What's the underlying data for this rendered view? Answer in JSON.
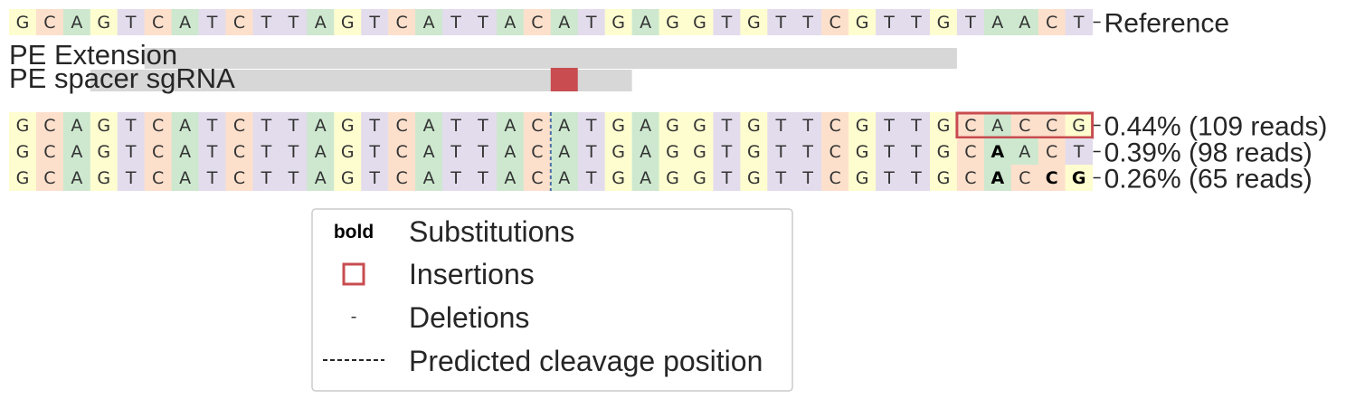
{
  "colors": {
    "A": "#cde8cf",
    "C": "#fde0cc",
    "G": "#fefdd0",
    "T": "#e3dcec",
    "track": "#d7d7d7",
    "insertion": "#c84c50",
    "cleavage": "#4a6fa8",
    "text": "#262626"
  },
  "reference": {
    "sequence": "GCAGTCATCTTAGTCATTACATGAGGTGTTCGTTGTAACT",
    "label": "Reference"
  },
  "tracks": [
    {
      "label": "PE Extension"
    },
    {
      "label": "PE spacer sgRNA"
    }
  ],
  "cleavage_after_index": 19,
  "reads": [
    {
      "sequence": "GCAGTCATCTTAGTCATTACATGAGGTGTTCGTTGCACCG",
      "bold": [],
      "insertion": [
        35,
        40
      ],
      "label": "0.44% (109 reads)"
    },
    {
      "sequence": "GCAGTCATCTTAGTCATTACATGAGGTGTTCGTTGCAACT",
      "bold": [
        36
      ],
      "insertion": null,
      "label": "0.39% (98 reads)"
    },
    {
      "sequence": "GCAGTCATCTTAGTCATTACATGAGGTGTTCGTTGCACCG",
      "bold": [
        36,
        38,
        39
      ],
      "insertion": null,
      "label": "0.26% (65 reads)"
    }
  ],
  "legend": {
    "bold_symbol": "bold",
    "substitutions": "Substitutions",
    "insertions": "Insertions",
    "deletions_symbol": "-",
    "deletions": "Deletions",
    "cleavage": "Predicted cleavage position"
  }
}
